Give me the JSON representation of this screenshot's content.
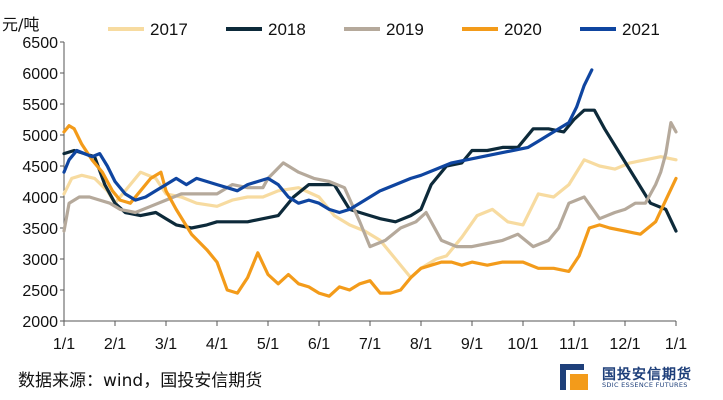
{
  "chart_data": {
    "type": "line",
    "ylabel": "元/吨",
    "ylim": [
      2000,
      6500
    ],
    "yticks": [
      2000,
      2500,
      3000,
      3500,
      4000,
      4500,
      5000,
      5500,
      6000,
      6500
    ],
    "x_ticks": [
      "1/1",
      "2/1",
      "3/1",
      "4/1",
      "5/1",
      "6/1",
      "7/1",
      "8/1",
      "9/1",
      "10/1",
      "11/1",
      "12/1",
      "1/1"
    ],
    "x_unit": "month",
    "xlim": [
      0,
      12
    ],
    "legend_position": "top",
    "series": [
      {
        "name": "2017",
        "color": "#f7dba0",
        "x": [
          0,
          0.15,
          0.35,
          0.6,
          0.85,
          1.0,
          1.2,
          1.5,
          1.8,
          2.0,
          2.3,
          2.6,
          3.0,
          3.3,
          3.6,
          3.9,
          4.2,
          4.6,
          5.0,
          5.3,
          5.6,
          5.9,
          6.2,
          6.5,
          6.8,
          7.0,
          7.3,
          7.5,
          7.8,
          8.1,
          8.4,
          8.7,
          9.0,
          9.3,
          9.6,
          9.9,
          10.2,
          10.5,
          10.8,
          11.1,
          11.4,
          11.7,
          12.0
        ],
        "y": [
          4050,
          4300,
          4350,
          4300,
          4100,
          3900,
          4100,
          4400,
          4300,
          4050,
          4000,
          3900,
          3850,
          3950,
          4000,
          4000,
          4100,
          4150,
          4000,
          3700,
          3550,
          3450,
          3300,
          3000,
          2700,
          2850,
          3000,
          3050,
          3350,
          3700,
          3800,
          3600,
          3550,
          4050,
          4000,
          4200,
          4600,
          4500,
          4450,
          4550,
          4600,
          4650,
          4600
        ]
      },
      {
        "name": "2018",
        "color": "#0d2a3a",
        "x": [
          0,
          0.2,
          0.4,
          0.6,
          0.8,
          1.0,
          1.2,
          1.5,
          1.8,
          2.0,
          2.2,
          2.5,
          2.8,
          3.0,
          3.3,
          3.6,
          3.9,
          4.2,
          4.5,
          4.8,
          5.0,
          5.3,
          5.6,
          5.8,
          6.0,
          6.2,
          6.5,
          6.8,
          7.0,
          7.2,
          7.5,
          7.8,
          8.0,
          8.3,
          8.6,
          8.9,
          9.2,
          9.5,
          9.8,
          10.0,
          10.2,
          10.4,
          10.6,
          10.9,
          11.2,
          11.5,
          11.8,
          12.0
        ],
        "y": [
          4700,
          4750,
          4700,
          4650,
          4200,
          3900,
          3750,
          3700,
          3750,
          3650,
          3550,
          3500,
          3550,
          3600,
          3600,
          3600,
          3650,
          3700,
          4000,
          4200,
          4200,
          4200,
          3800,
          3750,
          3700,
          3650,
          3600,
          3700,
          3800,
          4200,
          4500,
          4550,
          4750,
          4750,
          4800,
          4800,
          5100,
          5100,
          5050,
          5250,
          5400,
          5400,
          5100,
          4700,
          4300,
          3900,
          3800,
          3450
        ]
      },
      {
        "name": "2019",
        "color": "#b5a99b",
        "x": [
          0,
          0.1,
          0.3,
          0.5,
          0.7,
          0.9,
          1.1,
          1.4,
          1.7,
          2.0,
          2.3,
          2.6,
          3.0,
          3.3,
          3.6,
          3.9,
          4.0,
          4.3,
          4.6,
          4.9,
          5.2,
          5.5,
          5.8,
          6.0,
          6.3,
          6.6,
          6.9,
          7.1,
          7.4,
          7.7,
          8.0,
          8.3,
          8.6,
          8.9,
          9.2,
          9.5,
          9.7,
          9.9,
          10.2,
          10.5,
          10.8,
          11.0,
          11.2,
          11.4,
          11.6,
          11.7,
          11.8,
          11.9,
          12.0
        ],
        "y": [
          3450,
          3900,
          4000,
          4000,
          3950,
          3900,
          3800,
          3750,
          3850,
          3950,
          4050,
          4050,
          4050,
          4200,
          4150,
          4150,
          4300,
          4550,
          4400,
          4300,
          4250,
          4150,
          3600,
          3200,
          3300,
          3500,
          3600,
          3750,
          3300,
          3200,
          3200,
          3250,
          3300,
          3400,
          3200,
          3300,
          3500,
          3900,
          4000,
          3650,
          3750,
          3800,
          3900,
          3900,
          4200,
          4400,
          4700,
          5200,
          5050
        ]
      },
      {
        "name": "2020",
        "color": "#f39b1a",
        "x": [
          0,
          0.1,
          0.2,
          0.35,
          0.55,
          0.75,
          0.95,
          1.1,
          1.3,
          1.5,
          1.7,
          1.9,
          2.0,
          2.2,
          2.5,
          2.8,
          3.0,
          3.2,
          3.4,
          3.6,
          3.8,
          4.0,
          4.2,
          4.4,
          4.6,
          4.8,
          5.0,
          5.2,
          5.4,
          5.6,
          5.8,
          6.0,
          6.2,
          6.4,
          6.6,
          6.8,
          7.0,
          7.2,
          7.4,
          7.6,
          7.8,
          8.0,
          8.3,
          8.6,
          9.0,
          9.3,
          9.6,
          9.9,
          10.1,
          10.3,
          10.5,
          10.7,
          11.0,
          11.3,
          11.6,
          11.8,
          12.0
        ],
        "y": [
          5050,
          5150,
          5100,
          4850,
          4600,
          4400,
          4100,
          3950,
          3900,
          4100,
          4300,
          4400,
          4100,
          3800,
          3400,
          3150,
          2950,
          2500,
          2450,
          2700,
          3100,
          2750,
          2600,
          2750,
          2600,
          2550,
          2450,
          2400,
          2550,
          2500,
          2600,
          2650,
          2450,
          2450,
          2500,
          2700,
          2850,
          2900,
          2950,
          2950,
          2900,
          2950,
          2900,
          2950,
          2950,
          2850,
          2850,
          2800,
          3050,
          3500,
          3550,
          3500,
          3450,
          3400,
          3600,
          3950,
          4300
        ]
      },
      {
        "name": "2021",
        "color": "#0f45a0",
        "x": [
          0,
          0.1,
          0.25,
          0.4,
          0.55,
          0.7,
          0.85,
          1.0,
          1.2,
          1.4,
          1.6,
          1.8,
          2.0,
          2.2,
          2.4,
          2.6,
          2.8,
          3.0,
          3.2,
          3.4,
          3.6,
          3.8,
          4.0,
          4.2,
          4.4,
          4.6,
          4.8,
          5.0,
          5.2,
          5.4,
          5.6,
          5.8,
          6.0,
          6.2,
          6.5,
          6.8,
          7.0,
          7.3,
          7.6,
          7.9,
          8.2,
          8.5,
          8.8,
          9.1,
          9.3,
          9.5,
          9.7,
          9.9,
          10.05,
          10.2,
          10.35
        ],
        "y": [
          4400,
          4600,
          4750,
          4700,
          4650,
          4700,
          4500,
          4250,
          4050,
          3950,
          4000,
          4100,
          4200,
          4300,
          4200,
          4300,
          4250,
          4200,
          4150,
          4100,
          4200,
          4250,
          4300,
          4200,
          4000,
          3900,
          3950,
          3900,
          3800,
          3750,
          3800,
          3900,
          4000,
          4100,
          4200,
          4300,
          4350,
          4450,
          4550,
          4600,
          4650,
          4700,
          4750,
          4800,
          4900,
          5000,
          5100,
          5200,
          5450,
          5800,
          6050
        ]
      }
    ]
  },
  "source": "数据来源：wind，国投安信期货",
  "brand": {
    "name": "国投安信期货",
    "subtitle": "SDIC ESSENCE FUTURES"
  }
}
